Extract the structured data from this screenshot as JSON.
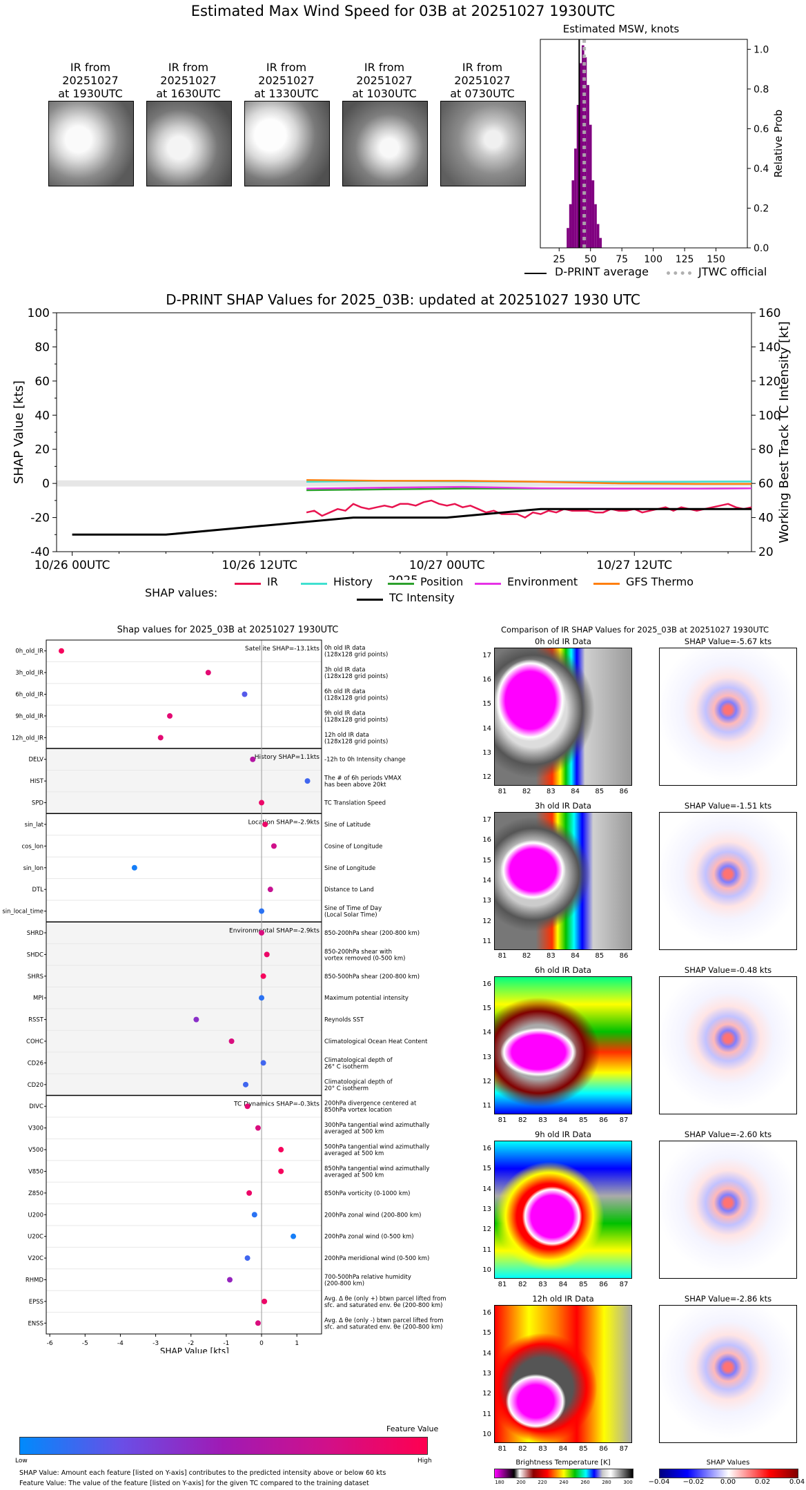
{
  "title": "Estimated Max Wind Speed for 03B at 20251027 1930UTC",
  "ir_images": [
    {
      "label": "IR from\n20251027\nat 1930UTC"
    },
    {
      "label": "IR from\n20251027\nat 1630UTC"
    },
    {
      "label": "IR from\n20251027\nat 1330UTC"
    },
    {
      "label": "IR from\n20251027\nat 1030UTC"
    },
    {
      "label": "IR from\n20251027\nat 0730UTC"
    }
  ],
  "msw_panel": {
    "title": "Estimated MSW, knots",
    "ylabel": "Relative Prob",
    "legend_avg": "D-PRINT average",
    "legend_official": "JTWC official"
  },
  "shap_timeseries": {
    "title": "D-PRINT SHAP Values for 2025_03B: updated at 20251027 1930 UTC",
    "ylabel_left": "SHAP Value [kts]",
    "ylabel_right": "Working Best Track TC Intensity [kt]",
    "xlabel": "2025",
    "legend_title": "SHAP values:",
    "legend_items": [
      "IR",
      "History",
      "Position",
      "Environment",
      "GFS Thermo",
      "TC Intensity"
    ]
  },
  "feature_panel": {
    "title": "Shap values for 2025_03B at 20251027 1930UTC",
    "xlabel": "SHAP Value [kts]",
    "groups": [
      {
        "label": "Satellite SHAP=-13.1kts"
      },
      {
        "label": "History SHAP=1.1kts"
      },
      {
        "label": "Location SHAP=-2.9kts"
      },
      {
        "label": "Environmental SHAP=-2.9kts"
      },
      {
        "label": "TC Dynamics SHAP=-0.3kts"
      }
    ],
    "colorbar": {
      "title": "Feature Value",
      "low": "Low",
      "high": "High"
    },
    "footnote1": "SHAP Value: Amount each feature [listed on Y-axis] contributes to the predicted intensity above or below 60 kts",
    "footnote2": "Feature Value: The value of the feature [listed on Y-axis] for the given TC compared to the training dataset"
  },
  "ir_compare": {
    "title": "Comparison of IR SHAP Values for 2025_03B at 20251027 1930UTC",
    "rows": [
      {
        "ir_title": "0h old IR Data",
        "shap_title": "SHAP Value=-5.67 kts",
        "yticks": [
          "17",
          "16",
          "15",
          "14",
          "13",
          "12"
        ],
        "xticks": [
          "81",
          "82",
          "83",
          "84",
          "85",
          "86"
        ]
      },
      {
        "ir_title": "3h old IR Data",
        "shap_title": "SHAP Value=-1.51 kts",
        "yticks": [
          "17",
          "16",
          "15",
          "14",
          "13",
          "12",
          "11"
        ],
        "xticks": [
          "81",
          "82",
          "83",
          "84",
          "85",
          "86"
        ]
      },
      {
        "ir_title": "6h old IR Data",
        "shap_title": "SHAP Value=-0.48 kts",
        "yticks": [
          "16",
          "15",
          "14",
          "13",
          "12",
          "11"
        ],
        "xticks": [
          "81",
          "82",
          "83",
          "84",
          "85",
          "86",
          "87"
        ]
      },
      {
        "ir_title": "9h old IR Data",
        "shap_title": "SHAP Value=-2.60 kts",
        "yticks": [
          "16",
          "15",
          "14",
          "13",
          "12",
          "11",
          "10"
        ],
        "xticks": [
          "81",
          "82",
          "83",
          "84",
          "85",
          "86",
          "87"
        ]
      },
      {
        "ir_title": "12h old IR Data",
        "shap_title": "SHAP Value=-2.86 kts",
        "yticks": [
          "16",
          "15",
          "14",
          "13",
          "12",
          "11",
          "10"
        ],
        "xticks": [
          "81",
          "82",
          "83",
          "84",
          "85",
          "86",
          "87"
        ]
      }
    ],
    "bt_label": "Brightness Temperature [K]",
    "bt_ticks": [
      "180",
      "200",
      "220",
      "240",
      "260",
      "280",
      "300"
    ],
    "shap_cbar_label": "SHAP Values",
    "shap_ticks": [
      "−0.04",
      "−0.02",
      "0.00",
      "0.02",
      "0.04"
    ]
  },
  "chart_data": [
    {
      "type": "bar",
      "title": "Estimated MSW, knots",
      "xlabel": "",
      "ylabel": "Relative Prob",
      "xlim": [
        10,
        175
      ],
      "ylim": [
        0,
        1.05
      ],
      "xticks": [
        25,
        50,
        75,
        100,
        125,
        150
      ],
      "yticks": [
        0.0,
        0.2,
        0.4,
        0.6,
        0.8,
        1.0
      ],
      "bar_width": 2,
      "bins": [
        32,
        34,
        36,
        38,
        40,
        42,
        44,
        46,
        48,
        50,
        52,
        54,
        56,
        58
      ],
      "values": [
        0.1,
        0.22,
        0.34,
        0.5,
        0.72,
        0.93,
        1.02,
        0.96,
        0.82,
        0.62,
        0.34,
        0.22,
        0.12,
        0.05
      ],
      "color": "#800080",
      "dpr_average": 41,
      "jtwc_official": 45
    },
    {
      "type": "line",
      "title": "D-PRINT SHAP Values for 2025_03B: updated at 20251027 1930 UTC",
      "xlabel": "2025",
      "ylabel": "SHAP Value [kts]",
      "y2label": "Working Best Track TC Intensity [kt]",
      "x_hours_ticks": [
        0,
        12,
        24,
        36
      ],
      "xtick_labels": [
        "10/26 00UTC",
        "10/26 12UTC",
        "10/27 00UTC",
        "10/27 12UTC"
      ],
      "xlim": [
        -1,
        43.5
      ],
      "ylim": [
        -40,
        100
      ],
      "y2lim": [
        20,
        160
      ],
      "yticks": [
        -40,
        -20,
        0,
        20,
        40,
        60,
        80,
        100
      ],
      "y2ticks": [
        20,
        40,
        60,
        80,
        100,
        120,
        140,
        160
      ],
      "series": [
        {
          "name": "IR",
          "color": "#e8134f",
          "x": [
            15,
            15.5,
            16,
            16.5,
            17,
            17.5,
            18,
            18.5,
            19,
            19.5,
            20,
            20.5,
            21,
            21.5,
            22,
            22.5,
            23,
            23.5,
            24,
            24.5,
            25,
            25.5,
            26,
            26.5,
            27,
            27.5,
            28,
            28.5,
            29,
            29.5,
            30,
            30.5,
            31,
            31.5,
            32,
            32.5,
            33,
            33.5,
            34,
            34.5,
            35,
            35.5,
            36,
            36.5,
            37,
            37.5,
            38,
            38.5,
            39,
            39.5,
            40,
            40.5,
            41,
            41.5,
            42,
            42.5,
            43,
            43.5
          ],
          "y": [
            -17,
            -16,
            -19,
            -17,
            -15,
            -16,
            -12,
            -14,
            -15,
            -14,
            -13,
            -14,
            -12,
            -12,
            -13,
            -11,
            -10,
            -12,
            -13,
            -12,
            -14,
            -13,
            -15,
            -17,
            -16,
            -18,
            -18,
            -18,
            -20,
            -17,
            -18,
            -16,
            -17,
            -15,
            -16,
            -16,
            -16,
            -17,
            -17,
            -15,
            -16,
            -16,
            -15,
            -17,
            -16,
            -15,
            -14,
            -16,
            -14,
            -15,
            -16,
            -15,
            -14,
            -13,
            -12,
            -14,
            -15,
            -14
          ]
        },
        {
          "name": "History",
          "color": "#40e0d0",
          "x": [
            15,
            20,
            25,
            30,
            35,
            40,
            43.5
          ],
          "y": [
            1,
            1.5,
            1.2,
            1,
            0.8,
            1,
            1.1
          ]
        },
        {
          "name": "Position",
          "color": "#2ca02c",
          "x": [
            15,
            20,
            25,
            30,
            35,
            40,
            43.5
          ],
          "y": [
            -4,
            -3.5,
            -3,
            -3,
            -3,
            -3,
            -2.9
          ]
        },
        {
          "name": "Environment",
          "color": "#e632e6",
          "x": [
            15,
            20,
            25,
            30,
            35,
            40,
            43.5
          ],
          "y": [
            -3,
            -2.5,
            -2,
            -2.8,
            -3,
            -3,
            -2.9
          ]
        },
        {
          "name": "GFS Thermo",
          "color": "#ff7f0e",
          "x": [
            15,
            20,
            25,
            30,
            35,
            40,
            43.5
          ],
          "y": [
            2,
            1.5,
            1.5,
            1,
            0,
            -0.3,
            -0.3
          ]
        },
        {
          "name": "TC Intensity",
          "color": "#000000",
          "axis": "right",
          "x": [
            0,
            6,
            12,
            18,
            24,
            30,
            36,
            42,
            43.5
          ],
          "y": [
            30,
            30,
            35,
            40,
            40,
            45,
            45,
            45,
            45
          ]
        }
      ]
    },
    {
      "type": "scatter",
      "title": "Shap values for 2025_03B at 20251027 1930UTC",
      "xlabel": "SHAP Value [kts]",
      "xlim": [
        -6.1,
        1.7
      ],
      "xticks": [
        -6,
        -5,
        -4,
        -3,
        -2,
        -1,
        0,
        1
      ],
      "features": [
        {
          "name": "0h_old_IR",
          "desc": "0h old IR data\n(128x128 grid points)",
          "shap": -5.67,
          "fv": 0.95,
          "group": 0
        },
        {
          "name": "3h_old_IR",
          "desc": "3h old IR data\n(128x128 grid points)",
          "shap": -1.51,
          "fv": 0.85,
          "group": 0
        },
        {
          "name": "6h_old_IR",
          "desc": "6h old IR data\n(128x128 grid points)",
          "shap": -0.48,
          "fv": 0.2,
          "group": 0
        },
        {
          "name": "9h_old_IR",
          "desc": "9h old IR data\n(128x128 grid points)",
          "shap": -2.6,
          "fv": 0.85,
          "group": 0
        },
        {
          "name": "12h_old_IR",
          "desc": "12h old IR data\n(128x128 grid points)",
          "shap": -2.86,
          "fv": 0.85,
          "group": 0
        },
        {
          "name": "DELV",
          "desc": "-12h to 0h Intensity change",
          "shap": -0.25,
          "fv": 0.6,
          "group": 1
        },
        {
          "name": "HIST",
          "desc": "The # of 6h periods VMAX\nhas been above 20kt",
          "shap": 1.3,
          "fv": 0.15,
          "group": 1
        },
        {
          "name": "SPD",
          "desc": "TC Translation Speed",
          "shap": 0.0,
          "fv": 0.9,
          "group": 1
        },
        {
          "name": "sin_lat",
          "desc": "Sine of Latitude",
          "shap": 0.1,
          "fv": 0.9,
          "group": 2
        },
        {
          "name": "cos_lon",
          "desc": "Cosine of Longitude",
          "shap": 0.35,
          "fv": 0.75,
          "group": 2
        },
        {
          "name": "sin_lon",
          "desc": "Sine of Longitude",
          "shap": -3.6,
          "fv": 0.05,
          "group": 2
        },
        {
          "name": "DTL",
          "desc": "Distance to Land",
          "shap": 0.25,
          "fv": 0.7,
          "group": 2
        },
        {
          "name": "sin_local_time",
          "desc": "Sine of Time of Day\n(Local Solar Time)",
          "shap": 0.0,
          "fv": 0.1,
          "group": 2
        },
        {
          "name": "SHRD",
          "desc": "850-200hPa shear (200-800 km)",
          "shap": 0.0,
          "fv": 0.8,
          "group": 3
        },
        {
          "name": "SHDC",
          "desc": "850-200hPa shear with\nvortex removed (0-500 km)",
          "shap": 0.15,
          "fv": 0.9,
          "group": 3
        },
        {
          "name": "SHRS",
          "desc": "850-500hPa shear (200-800 km)",
          "shap": 0.05,
          "fv": 0.95,
          "group": 3
        },
        {
          "name": "MPI",
          "desc": "Maximum potential intensity",
          "shap": 0.0,
          "fv": 0.1,
          "group": 3
        },
        {
          "name": "RSST",
          "desc": "Reynolds SST",
          "shap": -1.85,
          "fv": 0.4,
          "group": 3
        },
        {
          "name": "COHC",
          "desc": "Climatological Ocean Heat Content",
          "shap": -0.85,
          "fv": 0.8,
          "group": 3
        },
        {
          "name": "CD26",
          "desc": "Climatological depth of\n26° C isotherm",
          "shap": 0.05,
          "fv": 0.15,
          "group": 3
        },
        {
          "name": "CD20",
          "desc": "Climatological depth of\n20° C isotherm",
          "shap": -0.45,
          "fv": 0.15,
          "group": 3
        },
        {
          "name": "DIVC",
          "desc": "200hPa divergence centered at\n850hPa vortex location",
          "shap": -0.4,
          "fv": 0.85,
          "group": 4
        },
        {
          "name": "V300",
          "desc": "300hPa tangential wind azimuthally\naveraged at 500 km",
          "shap": -0.1,
          "fv": 0.8,
          "group": 4
        },
        {
          "name": "V500",
          "desc": "500hPa tangential wind azimuthally\naveraged at 500 km",
          "shap": 0.55,
          "fv": 0.95,
          "group": 4
        },
        {
          "name": "V850",
          "desc": "850hPa tangential wind azimuthally\naveraged at 500 km",
          "shap": 0.55,
          "fv": 0.95,
          "group": 4
        },
        {
          "name": "Z850",
          "desc": "850hPa vorticity (0-1000 km)",
          "shap": -0.35,
          "fv": 0.9,
          "group": 4
        },
        {
          "name": "U200",
          "desc": "200hPa zonal wind (200-800 km)",
          "shap": -0.2,
          "fv": 0.1,
          "group": 4
        },
        {
          "name": "U20C",
          "desc": "200hPa zonal wind (0-500 km)",
          "shap": 0.9,
          "fv": 0.05,
          "group": 4
        },
        {
          "name": "V20C",
          "desc": "200hPa meridional wind (0-500 km)",
          "shap": -0.4,
          "fv": 0.15,
          "group": 4
        },
        {
          "name": "RHMD",
          "desc": "700-500hPa relative humidity\n(200-800 km)",
          "shap": -0.9,
          "fv": 0.45,
          "group": 4
        },
        {
          "name": "EPSS",
          "desc": "Avg. Δ θe (only +) btwn parcel lifted from\nsfc. and saturated env. θe (200-800 km)",
          "shap": 0.08,
          "fv": 0.9,
          "group": 4
        },
        {
          "name": "ENSS",
          "desc": "Avg. Δ θe (only -) btwn parcel lifted from\nsfc. and saturated env. θe (200-800 km)",
          "shap": -0.1,
          "fv": 0.8,
          "group": 4
        }
      ]
    }
  ]
}
